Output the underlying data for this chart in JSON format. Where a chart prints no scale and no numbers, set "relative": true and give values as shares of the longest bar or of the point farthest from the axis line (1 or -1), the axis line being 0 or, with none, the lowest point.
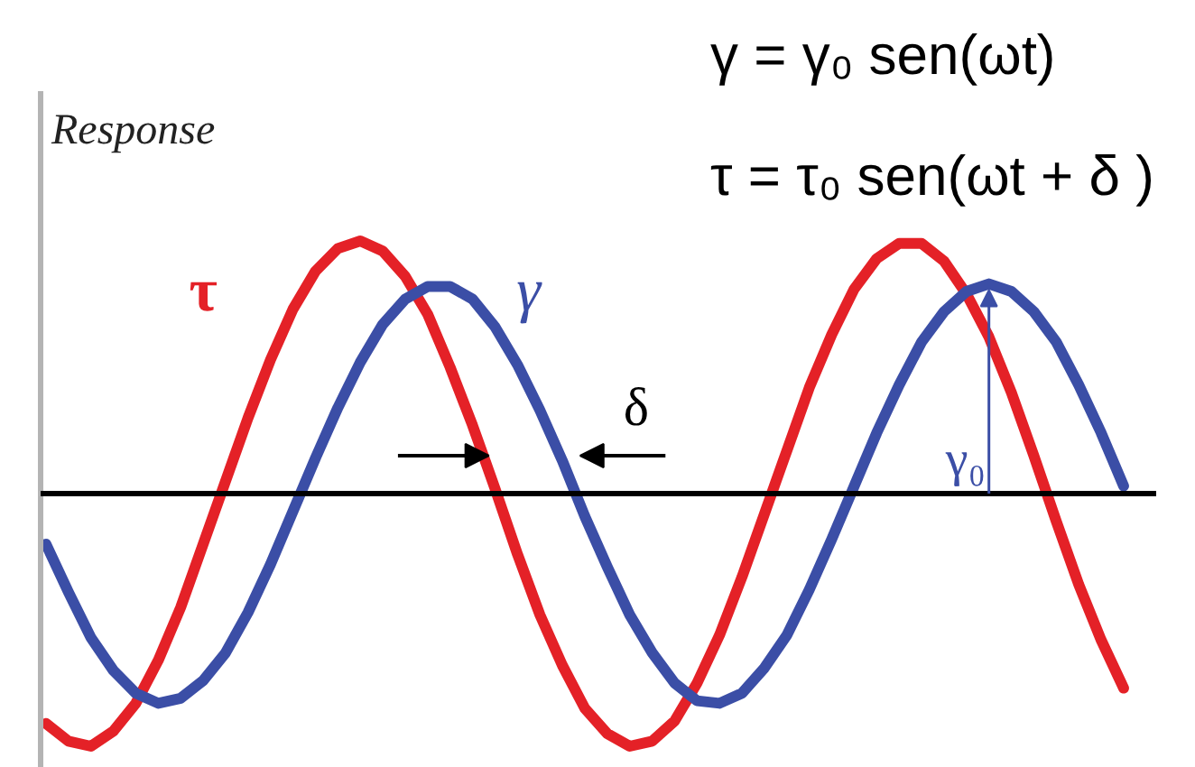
{
  "chart_data": {
    "type": "line",
    "relative": true,
    "ylabel": "Response",
    "line_style": "solid",
    "categories": [
      null,
      null,
      null,
      null,
      null,
      null,
      null,
      null,
      null,
      null,
      null,
      null,
      null,
      null,
      null,
      null,
      null,
      null,
      null,
      null,
      null,
      null,
      null,
      null,
      null,
      null,
      null,
      null,
      null,
      null,
      null,
      null,
      null,
      null,
      null,
      null,
      null,
      null,
      null,
      null,
      null,
      null,
      null,
      null,
      null,
      null,
      null,
      null,
      null
    ],
    "series": [
      {
        "name": "τ",
        "color": "#e42127",
        "values": [
          -0.91,
          -0.98,
          -1.0,
          -0.94,
          -0.83,
          -0.66,
          -0.45,
          -0.2,
          0.05,
          0.3,
          0.53,
          0.73,
          0.88,
          0.97,
          1.0,
          0.96,
          0.86,
          0.71,
          0.5,
          0.27,
          0.02,
          -0.24,
          -0.48,
          -0.68,
          -0.85,
          -0.95,
          -1.0,
          -0.98,
          -0.9,
          -0.75,
          -0.56,
          -0.33,
          -0.08,
          0.17,
          0.42,
          0.63,
          0.81,
          0.93,
          0.99,
          0.99,
          0.92,
          0.79,
          0.62,
          0.4,
          0.15,
          -0.11,
          -0.36,
          -0.58,
          -0.77
        ]
      },
      {
        "name": "γ",
        "color": "#3b4ea6",
        "values": [
          -0.2,
          -0.39,
          -0.57,
          -0.7,
          -0.79,
          -0.83,
          -0.81,
          -0.74,
          -0.63,
          -0.47,
          -0.28,
          -0.07,
          0.14,
          0.34,
          0.52,
          0.67,
          0.77,
          0.82,
          0.82,
          0.77,
          0.66,
          0.51,
          0.33,
          0.13,
          -0.09,
          -0.29,
          -0.48,
          -0.63,
          -0.75,
          -0.82,
          -0.83,
          -0.79,
          -0.69,
          -0.56,
          -0.38,
          -0.18,
          0.03,
          0.24,
          0.43,
          0.6,
          0.72,
          0.8,
          0.83,
          0.8,
          0.72,
          0.6,
          0.43,
          0.24,
          0.03
        ]
      }
    ],
    "annotations": [
      "γ = γ₀ sen(ωt)",
      "τ = τ₀ sen(ωt + δ )",
      "δ",
      "γ₀"
    ]
  }
}
